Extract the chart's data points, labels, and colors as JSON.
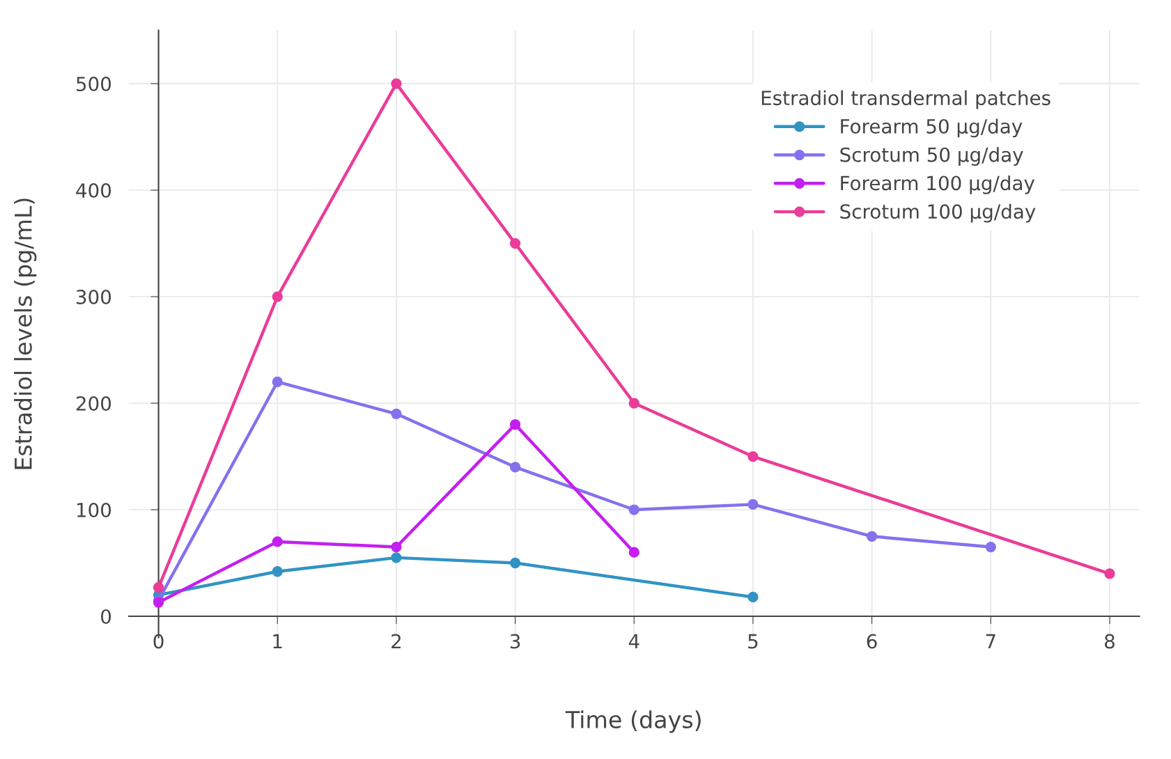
{
  "chart_data": {
    "type": "line",
    "xlabel": "Time (days)",
    "ylabel": "Estradiol levels (pg/mL)",
    "legend_title": "Estradiol transdermal patches",
    "xlim": [
      -0.25,
      8.25
    ],
    "ylim": [
      -20,
      550
    ],
    "xticks": [
      0,
      1,
      2,
      3,
      4,
      5,
      6,
      7,
      8
    ],
    "yticks": [
      0,
      100,
      200,
      300,
      400,
      500
    ],
    "grid": true,
    "legend": "top right",
    "marker": "circle",
    "line_style": "solid",
    "series": [
      {
        "name": "Forearm 50 μg/day",
        "color": "#3193c4",
        "x": [
          0,
          1,
          2,
          3,
          5
        ],
        "values": [
          20,
          42,
          55,
          50,
          18
        ]
      },
      {
        "name": "Scrotum 50 μg/day",
        "color": "#8670ee",
        "x": [
          0,
          1,
          2,
          3,
          4,
          5,
          6,
          7
        ],
        "values": [
          15,
          220,
          190,
          140,
          100,
          105,
          75,
          65
        ]
      },
      {
        "name": "Forearm 100 μg/day",
        "color": "#c41ff0",
        "x": [
          0,
          1,
          2,
          3,
          4
        ],
        "values": [
          13,
          70,
          65,
          180,
          60
        ]
      },
      {
        "name": "Scrotum 100 μg/day",
        "color": "#ea3c98",
        "x": [
          0,
          1,
          2,
          3,
          4,
          5,
          8
        ],
        "values": [
          27,
          300,
          500,
          350,
          200,
          150,
          40
        ]
      }
    ]
  }
}
